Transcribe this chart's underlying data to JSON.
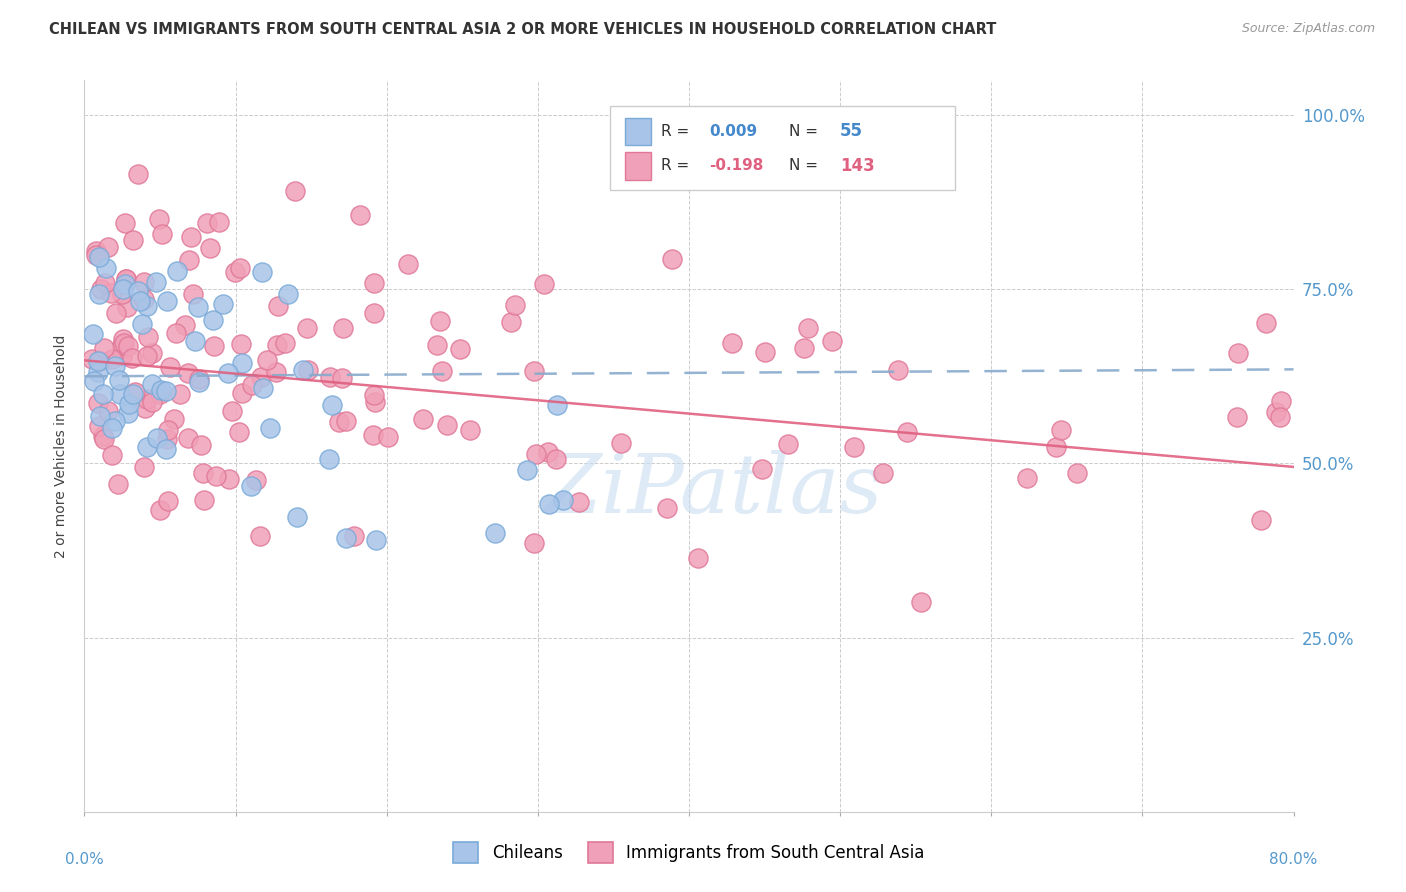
{
  "title": "CHILEAN VS IMMIGRANTS FROM SOUTH CENTRAL ASIA 2 OR MORE VEHICLES IN HOUSEHOLD CORRELATION CHART",
  "source": "Source: ZipAtlas.com",
  "ylabel": "2 or more Vehicles in Household",
  "blue_color": "#a8c4e8",
  "pink_color": "#f0a0b8",
  "blue_edge_color": "#7aaad8",
  "pink_edge_color": "#e07898",
  "blue_line_color": "#88aacc",
  "pink_line_color": "#e06080",
  "axis_color": "#5599cc",
  "grid_color": "#cccccc",
  "title_color": "#333333",
  "source_color": "#999999",
  "watermark_color": "#c8ddf0",
  "xmin": 0.0,
  "xmax": 0.8,
  "ymin": 0.0,
  "ymax": 1.05,
  "blue_line_start_y": 0.625,
  "blue_line_end_y": 0.635,
  "pink_line_start_y": 0.648,
  "pink_line_end_y": 0.495
}
